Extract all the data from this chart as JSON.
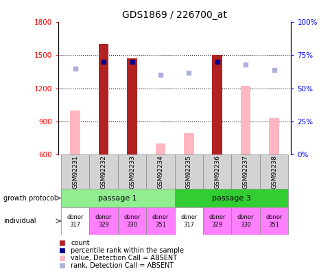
{
  "title": "GDS1869 / 226700_at",
  "samples": [
    "GSM92231",
    "GSM92232",
    "GSM92233",
    "GSM92234",
    "GSM92235",
    "GSM92236",
    "GSM92237",
    "GSM92238"
  ],
  "count_values": [
    0,
    1600,
    1475,
    0,
    0,
    1500,
    0,
    0
  ],
  "absent_value": [
    1000,
    0,
    0,
    700,
    790,
    0,
    1225,
    930
  ],
  "percentile_rank": [
    null,
    70,
    70,
    null,
    null,
    70,
    null,
    null
  ],
  "rank_absent": [
    65,
    null,
    null,
    60,
    62,
    null,
    68,
    64
  ],
  "ylim": [
    600,
    1800
  ],
  "yticks": [
    600,
    900,
    1200,
    1500,
    1800
  ],
  "pct_ylim": [
    0,
    100
  ],
  "pct_yticks": [
    0,
    25,
    50,
    75,
    100
  ],
  "pct_ticklabels": [
    "0%",
    "25%",
    "50%",
    "75%",
    "100%"
  ],
  "bar_width": 0.35,
  "color_count": "#b22222",
  "color_absent_value": "#ffb6c1",
  "color_pct_rank": "#00008b",
  "color_rank_absent": "#b0b0e0",
  "passage1_color": "#90ee90",
  "passage3_color": "#32cd32",
  "donor_colors_map": {
    "317": "#ffffff",
    "329": "#ff80ff",
    "330": "#ff80ff",
    "351": "#ff80ff"
  },
  "donors": [
    "317",
    "329",
    "330",
    "351",
    "317",
    "329",
    "330",
    "351"
  ],
  "passage_labels": [
    "passage 1",
    "passage 3"
  ],
  "growth_protocol_label": "growth protocol",
  "individual_label": "individual",
  "legend_items": [
    {
      "color": "#b22222",
      "label": "count"
    },
    {
      "color": "#00008b",
      "label": "percentile rank within the sample"
    },
    {
      "color": "#ffb6c1",
      "label": "value, Detection Call = ABSENT"
    },
    {
      "color": "#b0b0e0",
      "label": "rank, Detection Call = ABSENT"
    }
  ]
}
